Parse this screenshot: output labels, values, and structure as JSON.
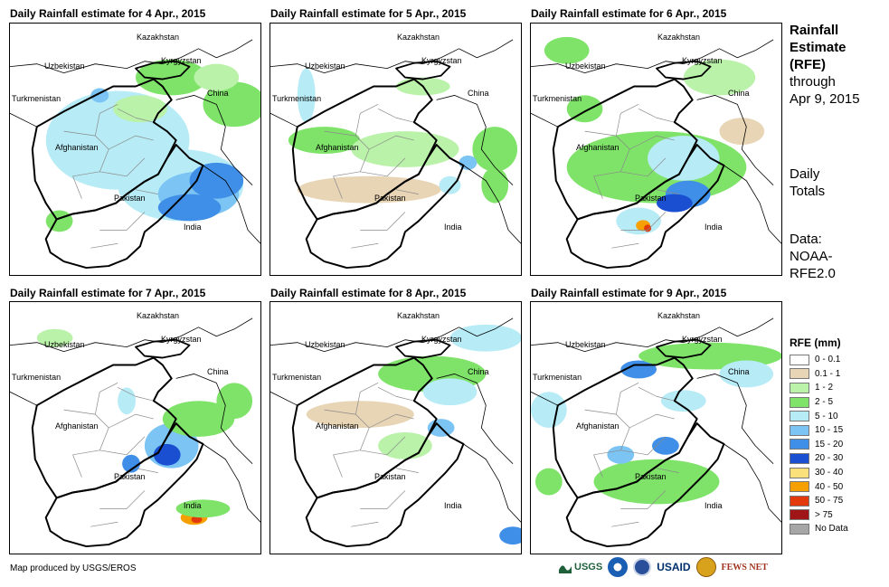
{
  "panels": [
    {
      "title": "Daily Rainfall estimate for 4 Apr., 2015"
    },
    {
      "title": "Daily Rainfall estimate for 5 Apr., 2015"
    },
    {
      "title": "Daily Rainfall estimate for 6 Apr., 2015"
    },
    {
      "title": "Daily Rainfall estimate for 7 Apr., 2015"
    },
    {
      "title": "Daily Rainfall estimate for 8 Apr., 2015"
    },
    {
      "title": "Daily Rainfall estimate for 9 Apr., 2015"
    }
  ],
  "map_labels": {
    "kazakhstan": "Kazakhstan",
    "uzbekistan": "Uzbekistan",
    "kyrgyzstan": "Kyrgyzstan",
    "turkmenistan": "Turkmenistan",
    "china": "China",
    "afghanistan": "Afghanistan",
    "pakistan": "Pakistan",
    "india": "India"
  },
  "side": {
    "title_line1": "Rainfall",
    "title_line2": "Estimate",
    "title_line3": "(RFE)",
    "through": "through",
    "date": "Apr 9, 2015",
    "daily1": "Daily",
    "daily2": "Totals",
    "data1": "Data:",
    "data2": "NOAA-",
    "data3": "RFE2.0"
  },
  "legend": {
    "title": "RFE (mm)",
    "items": [
      {
        "label": "0 - 0.1",
        "color": "#ffffff"
      },
      {
        "label": "0.1 - 1",
        "color": "#e8d5b5"
      },
      {
        "label": "1 - 2",
        "color": "#b9f2a8"
      },
      {
        "label": "2 - 5",
        "color": "#7fe36a"
      },
      {
        "label": "5 - 10",
        "color": "#b7ecf7"
      },
      {
        "label": "10 - 15",
        "color": "#7cc4f4"
      },
      {
        "label": "15 - 20",
        "color": "#3f8fe8"
      },
      {
        "label": "20 - 30",
        "color": "#1a4fd1"
      },
      {
        "label": "30 - 40",
        "color": "#f9e07a"
      },
      {
        "label": "40 - 50",
        "color": "#f6a000"
      },
      {
        "label": "50 - 75",
        "color": "#e23a0c"
      },
      {
        "label": "> 75",
        "color": "#a01515"
      },
      {
        "label": "No Data",
        "color": "#a6a6a6"
      }
    ]
  },
  "credit": "Map produced by USGS/EROS",
  "logos": {
    "usgs": "USGS",
    "usaid": "USAID",
    "fewsnet": "FEWS NET"
  }
}
